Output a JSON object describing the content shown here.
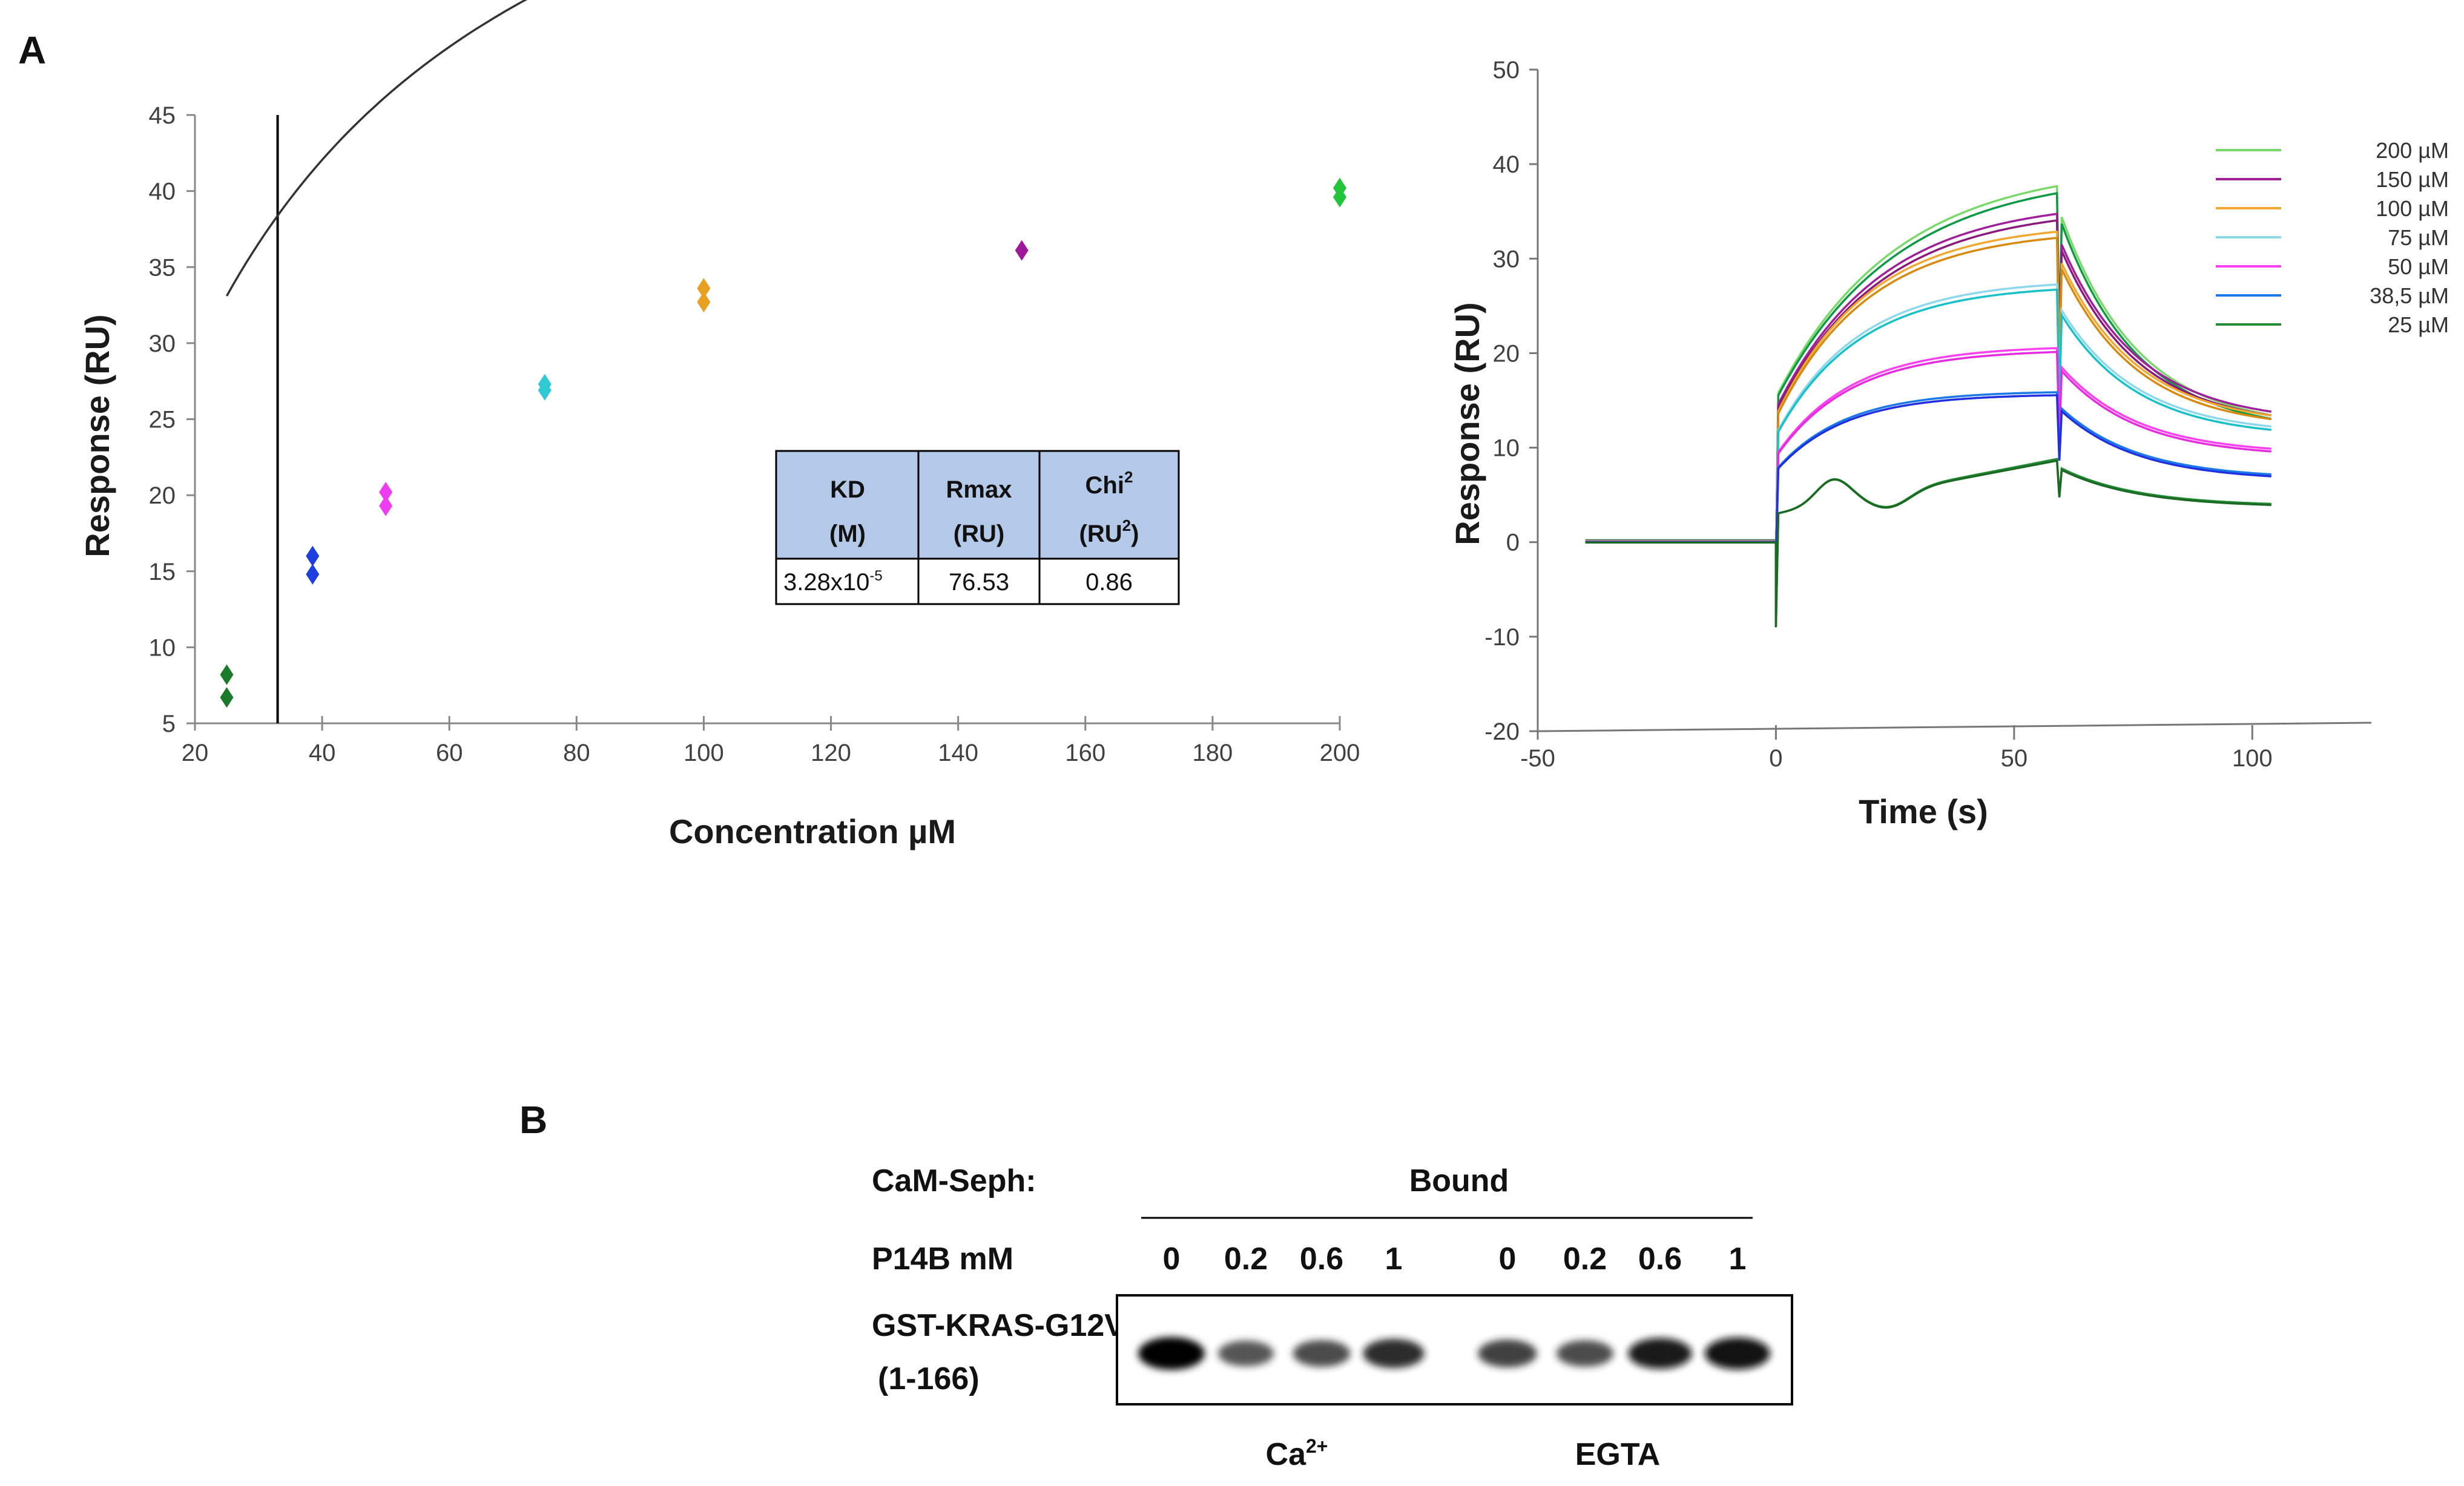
{
  "panels": {
    "a": "A",
    "b": "B"
  },
  "chart_data": [
    {
      "type": "scatter",
      "xlabel": "Concentration µM",
      "ylabel": "Response (RU)",
      "xlim": [
        20,
        200
      ],
      "ylim": [
        5,
        45
      ],
      "x_ticks": [
        "20",
        "40",
        "60",
        "80",
        "100",
        "120",
        "140",
        "160",
        "180",
        "200"
      ],
      "y_ticks": [
        "5",
        "10",
        "15",
        "20",
        "25",
        "30",
        "35",
        "40",
        "45"
      ],
      "points": [
        {
          "x": 25,
          "y": 8.2,
          "color": "#1b7a2a"
        },
        {
          "x": 25,
          "y": 6.7,
          "color": "#1b7a2a"
        },
        {
          "x": 38.5,
          "y": 16.0,
          "color": "#1f3ee0"
        },
        {
          "x": 38.5,
          "y": 14.8,
          "color": "#1f3ee0"
        },
        {
          "x": 50,
          "y": 20.2,
          "color": "#ee3cf0"
        },
        {
          "x": 50,
          "y": 19.3,
          "color": "#ee3cf0"
        },
        {
          "x": 75,
          "y": 27.3,
          "color": "#2ec9d4"
        },
        {
          "x": 75,
          "y": 26.9,
          "color": "#2ec9d4"
        },
        {
          "x": 100,
          "y": 33.6,
          "color": "#e8a020"
        },
        {
          "x": 100,
          "y": 32.7,
          "color": "#e8a020"
        },
        {
          "x": 150,
          "y": 36.1,
          "color": "#a0189a"
        },
        {
          "x": 200,
          "y": 40.2,
          "color": "#22c43a"
        },
        {
          "x": 200,
          "y": 39.6,
          "color": "#22c43a"
        }
      ],
      "vertical_line_x": 33,
      "fit": {
        "model": "steady-state affinity",
        "KD": 32.8,
        "Rmax": 76.53,
        "x_range": [
          25,
          200
        ]
      },
      "table": {
        "headers": [
          {
            "l1": "KD",
            "l2": "(M)"
          },
          {
            "l1": "Rmax",
            "l2": "(RU)"
          },
          {
            "l1": "Chi",
            "l1_sup": "2",
            "l2": "(RU",
            "l2_sup": "2",
            "l2_end": ")"
          }
        ],
        "row": {
          "kd_base": "3.28x10",
          "kd_exp": "-5",
          "rmax": "76.53",
          "chi2": "0.86"
        },
        "header_fill": "#b4c8e8"
      }
    },
    {
      "type": "line",
      "xlabel": "Time (s)",
      "ylabel": "Response (RU)",
      "xlim": [
        -50,
        125
      ],
      "ylim": [
        -20,
        50
      ],
      "x_ticks": [
        "-50",
        "0",
        "50",
        "100"
      ],
      "y_ticks": [
        "50",
        "40",
        "30",
        "20",
        "10",
        "0",
        "-10",
        "-20"
      ],
      "legend_position": "top-right",
      "series": [
        {
          "name": "200 µM",
          "color": "#7ad96a",
          "plateau": 40.0,
          "end": 12.0
        },
        {
          "name": "150 µM",
          "color": "#a0209a",
          "plateau": 36.2,
          "end": 12.6
        },
        {
          "name": "100 µM",
          "color": "#f0a830",
          "plateau": 33.8,
          "end": 12.3
        },
        {
          "name": "75 µM",
          "color": "#8ed8ec",
          "plateau": 27.8,
          "end": 11.4
        },
        {
          "name": "50 µM",
          "color": "#ff40f0",
          "plateau": 20.8,
          "end": 9.3
        },
        {
          "name": "38,5 µM",
          "color": "#1a78e8",
          "plateau": 16.0,
          "end": 6.7
        },
        {
          "name": "25 µM",
          "color": "#258c38",
          "plateau": 8.8,
          "end": 3.8
        }
      ],
      "dark_overlay_colors": [
        "#0d9a44",
        "#8a1a7c",
        "#d88a10",
        "#18c0c8",
        "#e62ce0",
        "#2030e0",
        "#1a6a24"
      ]
    }
  ],
  "blot": {
    "row1_label": "CaM-Seph:",
    "row1_header": "Bound",
    "row2_label": "P14B mM",
    "lanes": [
      "0",
      "0.2",
      "0.6",
      "1",
      "0",
      "0.2",
      "0.6",
      "1"
    ],
    "band_intensity": [
      1.0,
      0.55,
      0.62,
      0.78,
      0.68,
      0.6,
      0.88,
      0.95
    ],
    "protein_line1": "GST-KRAS-G12V",
    "protein_line2": "(1-166)",
    "group1_base": "Ca",
    "group1_sup": "2+",
    "group2": "EGTA"
  }
}
